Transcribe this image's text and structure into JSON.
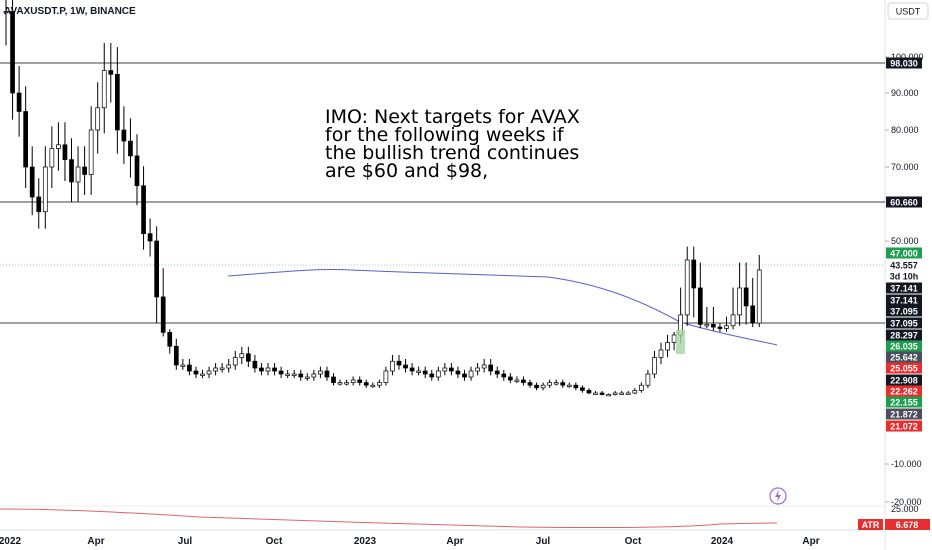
{
  "header": {
    "symbol_line": "AVAXUSDT.P, 1W, BINANCE",
    "currency_button": "USDT"
  },
  "annotation_lines": [
    "IMO: Next targets for AVAX",
    "for the following weeks if",
    "the bullish trend continues",
    "are $60 and $98,"
  ],
  "colors": {
    "up": "#26a69a",
    "down": "#ef5350",
    "candle_body_up": "#ffffff",
    "candle_body_down": "#000000",
    "ma_line": "#5b5fc7",
    "atr_line": "#e06666",
    "tag_dark": "#131722",
    "tag_green": "#1e9e4f",
    "tag_red": "#e62e2e",
    "tag_gray": "#4a4f5c"
  },
  "chart_data": {
    "type": "candlestick",
    "x_tick_labels": [
      "2022",
      "Apr",
      "Jul",
      "Oct",
      "2023",
      "Apr",
      "Jul",
      "Oct",
      "2024",
      "Apr"
    ],
    "y_tick_labels": [
      "100.000",
      "90.000",
      "80.000",
      "70.000",
      "50.000",
      "-10.000",
      "-20.000"
    ],
    "y_range": [
      -20,
      115
    ],
    "horizontal_lines": [
      98.03,
      60.66,
      37.095
    ],
    "price_tags": [
      {
        "text": "98.030",
        "value": 98.03,
        "style": "dark"
      },
      {
        "text": "60.660",
        "value": 60.66,
        "style": "dark"
      },
      {
        "text": "47.000",
        "value": 47.0,
        "style": "green"
      },
      {
        "text": "43.557",
        "value": 43.557,
        "style": "light"
      },
      {
        "text": "3d 10h",
        "value": 41.3,
        "style": "light"
      },
      {
        "text": "37.141",
        "value": 37.141,
        "style": "dark"
      },
      {
        "text": "37.141",
        "value": 37.141,
        "style": "dark"
      },
      {
        "text": "37.095",
        "value": 37.095,
        "style": "dark"
      },
      {
        "text": "37.095",
        "value": 37.095,
        "style": "dark"
      },
      {
        "text": "28.297",
        "value": 28.297,
        "style": "dark"
      },
      {
        "text": "26.035",
        "value": 26.035,
        "style": "green"
      },
      {
        "text": "25.642",
        "value": 25.642,
        "style": "gray"
      },
      {
        "text": "25.055",
        "value": 25.055,
        "style": "red"
      },
      {
        "text": "22.908",
        "value": 22.908,
        "style": "dark"
      },
      {
        "text": "22.262",
        "value": 22.262,
        "style": "red"
      },
      {
        "text": "22.155",
        "value": 22.155,
        "style": "green"
      },
      {
        "text": "21.872",
        "value": 21.872,
        "style": "gray"
      },
      {
        "text": "21.072",
        "value": 21.072,
        "style": "red"
      }
    ],
    "ohlc_close_weekly": [
      112,
      90,
      85,
      70,
      62,
      58,
      70,
      75,
      76,
      72,
      66,
      70,
      68,
      80,
      86,
      96,
      95,
      80,
      77,
      73,
      65,
      52,
      50,
      40,
      30,
      25,
      20,
      20,
      18,
      17,
      17,
      18,
      19,
      19,
      20,
      22,
      23,
      21,
      19,
      18,
      19,
      18,
      17,
      17,
      17,
      16,
      16,
      17,
      18,
      16,
      14,
      14,
      14,
      15,
      14,
      13,
      13,
      14,
      18,
      21,
      20,
      19,
      18,
      18,
      17,
      16,
      18,
      19,
      18,
      17,
      16,
      18,
      19,
      20,
      18,
      17,
      16,
      15,
      15,
      14,
      13,
      12,
      13,
      14,
      14,
      13,
      13,
      12,
      11,
      10,
      10,
      9,
      9,
      10,
      10,
      10,
      11,
      13,
      17,
      22,
      24,
      26,
      28,
      38,
      45,
      41,
      36,
      36,
      34,
      33,
      35,
      38,
      41,
      39,
      37,
      43
    ],
    "ma_series_label": "",
    "atr": {
      "label": "ATR",
      "value": "6.678",
      "axis_labels": [
        "25.000"
      ]
    }
  }
}
